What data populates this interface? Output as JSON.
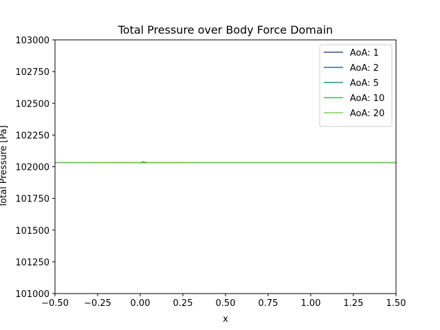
{
  "chart_data": {
    "type": "line",
    "title": "Total Pressure over Body Force Domain",
    "xlabel": "x",
    "ylabel": "Total Pressure [Pa]",
    "xlim": [
      -0.5,
      1.5
    ],
    "ylim": [
      101000,
      103000
    ],
    "xticks": [
      -0.5,
      -0.25,
      0.0,
      0.25,
      0.5,
      0.75,
      1.0,
      1.25,
      1.5
    ],
    "xtick_labels": [
      "−0.50",
      "−0.25",
      "0.00",
      "0.25",
      "0.50",
      "0.75",
      "1.00",
      "1.25",
      "1.50"
    ],
    "yticks": [
      101000,
      101250,
      101500,
      101750,
      102000,
      102250,
      102500,
      102750,
      103000
    ],
    "ytick_labels": [
      "101000",
      "101250",
      "101500",
      "101750",
      "102000",
      "102250",
      "102500",
      "102750",
      "103000"
    ],
    "grid": false,
    "legend_position": "top-right",
    "x": [
      -0.5,
      -0.25,
      0.0,
      0.02,
      0.04,
      0.25,
      0.5,
      0.75,
      1.0,
      1.25,
      1.5
    ],
    "series": [
      {
        "name": "AoA: 1",
        "color": "#3b4f8a",
        "values": [
          102032,
          102032,
          102032,
          102033,
          102032,
          102032,
          102032,
          102032,
          102032,
          102032,
          102032
        ]
      },
      {
        "name": "AoA: 2",
        "color": "#2b6a8e",
        "values": [
          102032,
          102032,
          102032,
          102034,
          102032,
          102032,
          102032,
          102032,
          102032,
          102032,
          102032
        ]
      },
      {
        "name": "AoA: 5",
        "color": "#1f948c",
        "values": [
          102032,
          102032,
          102032,
          102036,
          102032,
          102032,
          102032,
          102032,
          102032,
          102032,
          102032
        ]
      },
      {
        "name": "AoA: 10",
        "color": "#35b779",
        "values": [
          102032,
          102032,
          102032,
          102038,
          102032,
          102032,
          102032,
          102032,
          102032,
          102032,
          102032
        ]
      },
      {
        "name": "AoA: 20",
        "color": "#7ad151",
        "values": [
          102032,
          102032,
          102033,
          102042,
          102033,
          102032,
          102032,
          102032,
          102032,
          102032,
          102032
        ]
      }
    ]
  }
}
